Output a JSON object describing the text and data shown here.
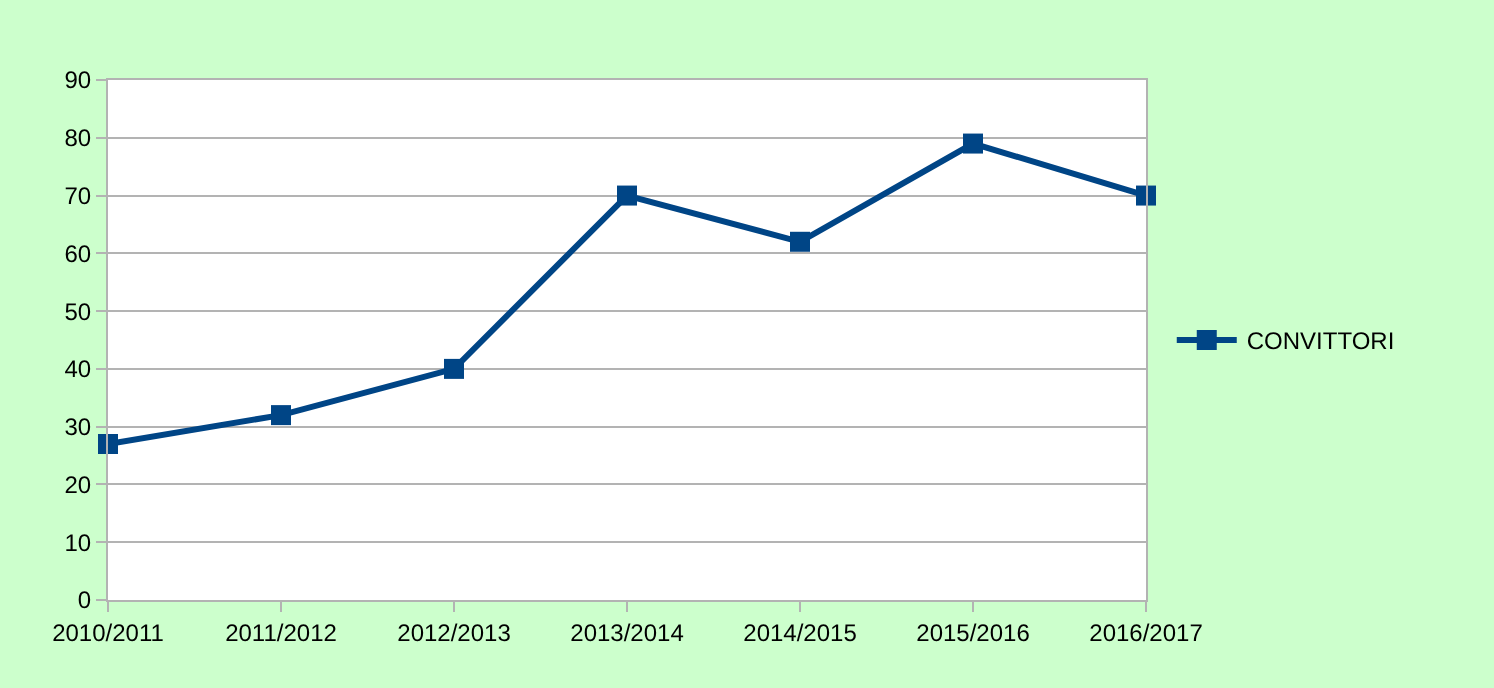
{
  "chart_data": {
    "type": "line",
    "categories": [
      "2010/2011",
      "2011/2012",
      "2012/2013",
      "2013/2014",
      "2014/2015",
      "2015/2016",
      "2016/2017"
    ],
    "series": [
      {
        "name": "CONVITTORI",
        "color": "#004586",
        "values": [
          27,
          32,
          40,
          70,
          62,
          79,
          70
        ]
      }
    ],
    "ylim": [
      0,
      90
    ],
    "yticks": [
      0,
      10,
      20,
      30,
      40,
      50,
      60,
      70,
      80,
      90
    ],
    "grid": "y",
    "legend": "right",
    "marker": "square",
    "line_style": "solid"
  }
}
